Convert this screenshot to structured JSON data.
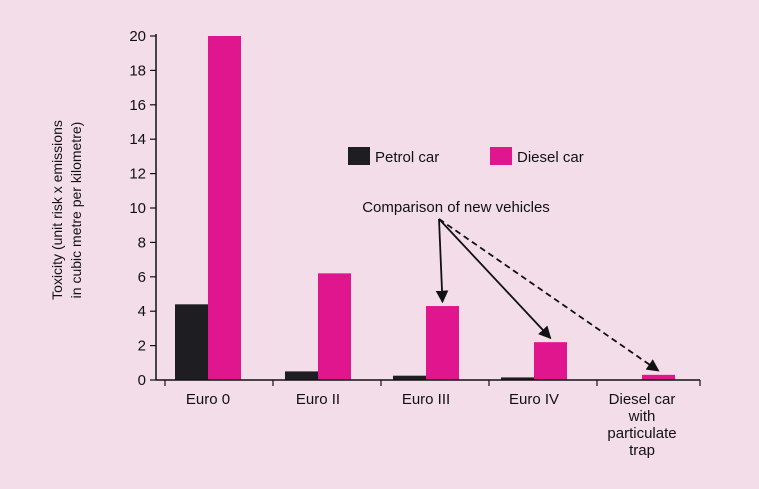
{
  "chart_data": {
    "type": "bar",
    "categories": [
      "Euro 0",
      "Euro II",
      "Euro III",
      "Euro IV",
      "Diesel car with particulate trap"
    ],
    "category_lines": [
      [
        "Euro 0"
      ],
      [
        "Euro II"
      ],
      [
        "Euro III"
      ],
      [
        "Euro IV"
      ],
      [
        "Diesel car",
        "with",
        "particulate",
        "trap"
      ]
    ],
    "series": [
      {
        "name": "Petrol car",
        "color": "#1e1e22",
        "values": [
          4.4,
          0.5,
          0.25,
          0.15,
          null
        ]
      },
      {
        "name": "Diesel car",
        "color": "#e0168e",
        "values": [
          20,
          6.2,
          4.3,
          2.2,
          0.3
        ]
      }
    ],
    "ylabel_lines": [
      "Toxicity (unit risk x emissions",
      "in cubic metre per kilometre)"
    ],
    "ylim": [
      0,
      20
    ],
    "yticks": [
      0,
      2,
      4,
      6,
      8,
      10,
      12,
      14,
      16,
      18,
      20
    ],
    "legend_position": "upper-right",
    "annotation": "Comparison of new vehicles",
    "annotation_targets": [
      2,
      3,
      4
    ]
  }
}
